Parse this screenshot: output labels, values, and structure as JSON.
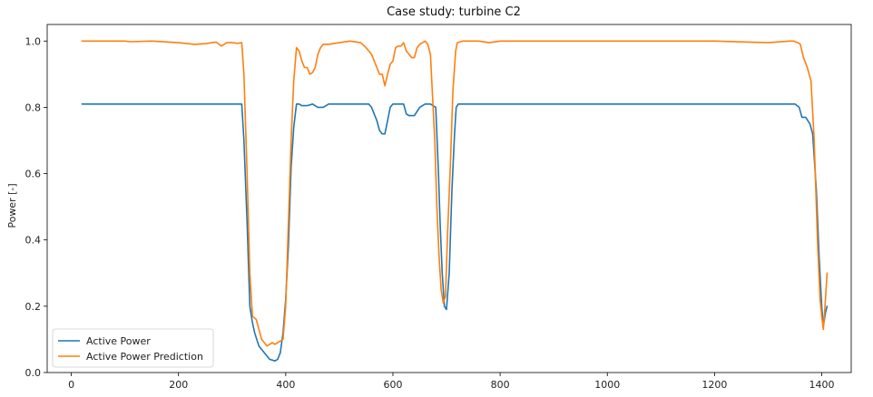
{
  "chart_data": {
    "type": "line",
    "title": "Case study: turbine C2",
    "xlabel": "",
    "ylabel": "Power [-]",
    "xlim": [
      -45,
      1455
    ],
    "ylim": [
      0.0,
      1.05
    ],
    "xticks": [
      0,
      200,
      400,
      600,
      800,
      1000,
      1200,
      1400
    ],
    "yticks": [
      0.0,
      0.2,
      0.4,
      0.6,
      0.8,
      1.0
    ],
    "xtick_labels": [
      "0",
      "200",
      "400",
      "600",
      "800",
      "1000",
      "1200",
      "1400"
    ],
    "ytick_labels": [
      "0.0",
      "0.2",
      "0.4",
      "0.6",
      "0.8",
      "1.0"
    ],
    "grid": false,
    "legend_position": "lower-left",
    "series": [
      {
        "name": "Active Power",
        "color": "#1f77b4",
        "x": [
          20,
          100,
          200,
          300,
          318,
          322,
          328,
          333,
          338,
          342,
          350,
          360,
          370,
          380,
          385,
          390,
          395,
          400,
          405,
          410,
          415,
          420,
          425,
          430,
          440,
          450,
          460,
          470,
          480,
          500,
          520,
          540,
          555,
          560,
          565,
          570,
          575,
          580,
          585,
          590,
          595,
          600,
          610,
          620,
          625,
          630,
          640,
          650,
          660,
          670,
          680,
          685,
          688,
          692,
          696,
          700,
          705,
          710,
          715,
          718,
          722,
          730,
          800,
          900,
          1000,
          1100,
          1200,
          1300,
          1350,
          1358,
          1363,
          1370,
          1378,
          1383,
          1390,
          1395,
          1400,
          1403,
          1407,
          1410
        ],
        "y": [
          0.81,
          0.81,
          0.81,
          0.81,
          0.81,
          0.7,
          0.45,
          0.2,
          0.15,
          0.12,
          0.08,
          0.06,
          0.04,
          0.035,
          0.04,
          0.06,
          0.12,
          0.22,
          0.38,
          0.62,
          0.74,
          0.81,
          0.81,
          0.805,
          0.805,
          0.81,
          0.8,
          0.8,
          0.81,
          0.81,
          0.81,
          0.81,
          0.81,
          0.8,
          0.78,
          0.76,
          0.73,
          0.72,
          0.72,
          0.76,
          0.8,
          0.81,
          0.81,
          0.81,
          0.78,
          0.775,
          0.775,
          0.8,
          0.81,
          0.81,
          0.8,
          0.6,
          0.45,
          0.3,
          0.2,
          0.19,
          0.3,
          0.55,
          0.72,
          0.8,
          0.81,
          0.81,
          0.81,
          0.81,
          0.81,
          0.81,
          0.81,
          0.81,
          0.81,
          0.8,
          0.77,
          0.77,
          0.75,
          0.72,
          0.55,
          0.35,
          0.2,
          0.14,
          0.18,
          0.2
        ]
      },
      {
        "name": "Active Power Prediction",
        "color": "#ff7f0e",
        "x": [
          20,
          100,
          110,
          150,
          200,
          230,
          250,
          270,
          280,
          290,
          300,
          310,
          318,
          322,
          328,
          333,
          338,
          345,
          355,
          365,
          370,
          375,
          380,
          385,
          390,
          395,
          400,
          405,
          410,
          415,
          420,
          425,
          430,
          435,
          440,
          445,
          450,
          455,
          460,
          465,
          470,
          480,
          500,
          520,
          540,
          550,
          560,
          570,
          575,
          580,
          585,
          590,
          595,
          600,
          605,
          610,
          615,
          620,
          625,
          630,
          635,
          640,
          645,
          650,
          660,
          665,
          670,
          678,
          682,
          686,
          690,
          694,
          698,
          702,
          707,
          712,
          717,
          720,
          730,
          760,
          780,
          800,
          900,
          1000,
          1100,
          1200,
          1300,
          1340,
          1348,
          1352,
          1356,
          1360,
          1366,
          1373,
          1380,
          1386,
          1392,
          1397,
          1400,
          1403,
          1406,
          1410
        ],
        "y": [
          1.0,
          1.0,
          0.998,
          1.0,
          0.995,
          0.99,
          0.992,
          0.997,
          0.985,
          0.995,
          0.995,
          0.993,
          0.995,
          0.9,
          0.6,
          0.3,
          0.17,
          0.16,
          0.1,
          0.08,
          0.085,
          0.09,
          0.085,
          0.09,
          0.095,
          0.1,
          0.2,
          0.45,
          0.7,
          0.88,
          0.98,
          0.97,
          0.94,
          0.92,
          0.92,
          0.9,
          0.905,
          0.92,
          0.96,
          0.98,
          0.99,
          0.99,
          0.995,
          1.0,
          0.995,
          0.98,
          0.96,
          0.92,
          0.9,
          0.9,
          0.865,
          0.9,
          0.93,
          0.94,
          0.98,
          0.985,
          0.985,
          0.995,
          0.97,
          0.96,
          0.95,
          0.95,
          0.98,
          0.99,
          1.0,
          0.99,
          0.96,
          0.7,
          0.5,
          0.35,
          0.25,
          0.21,
          0.23,
          0.42,
          0.62,
          0.85,
          0.97,
          0.995,
          1.0,
          1.0,
          0.995,
          1.0,
          1.0,
          1.0,
          1.0,
          1.0,
          0.995,
          1.0,
          1.0,
          0.997,
          0.995,
          0.99,
          0.95,
          0.92,
          0.88,
          0.7,
          0.4,
          0.22,
          0.17,
          0.13,
          0.2,
          0.3
        ]
      }
    ]
  }
}
